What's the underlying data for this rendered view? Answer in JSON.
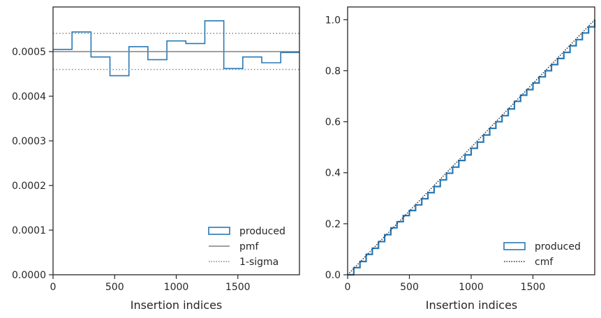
{
  "chart_data": [
    {
      "type": "step",
      "xlabel": "Insertion indices",
      "ylabel": "",
      "xlim": [
        0,
        2000
      ],
      "ylim": [
        0,
        0.0006
      ],
      "xticks": [
        0,
        500,
        1000,
        1500
      ],
      "xtick_labels": [
        "0",
        "500",
        "1000",
        "1500"
      ],
      "yticks": [
        0,
        0.0001,
        0.0002,
        0.0003,
        0.0004,
        0.0005
      ],
      "ytick_labels": [
        "0.0000",
        "0.0001",
        "0.0002",
        "0.0003",
        "0.0004",
        "0.0005"
      ],
      "grid": false,
      "legend_position": "lower-right",
      "series": [
        {
          "name": "produced",
          "style": "step",
          "color": "#2878b5",
          "bin_edges": [
            0,
            154,
            308,
            462,
            616,
            770,
            924,
            1078,
            1232,
            1386,
            1540,
            1694,
            1848,
            2000
          ],
          "values": [
            0.000505,
            0.000544,
            0.000488,
            0.000446,
            0.000511,
            0.000482,
            0.000524,
            0.000518,
            0.000569,
            0.000462,
            0.000488,
            0.000475,
            0.000498
          ]
        },
        {
          "name": "pmf",
          "style": "hline",
          "color": "#808080",
          "y": 0.0005
        },
        {
          "name": "1-sigma",
          "style": "hline-dotted",
          "color": "#808080",
          "y": [
            0.00046,
            0.000541
          ]
        }
      ],
      "legend": [
        {
          "label": "produced",
          "kind": "patch",
          "color": "#2878b5"
        },
        {
          "label": "pmf",
          "kind": "line",
          "color": "#808080"
        },
        {
          "label": "1-sigma",
          "kind": "dotted",
          "color": "#808080"
        }
      ]
    },
    {
      "type": "line",
      "xlabel": "Insertion indices",
      "ylabel": "",
      "xlim": [
        0,
        2000
      ],
      "ylim": [
        0,
        1.05
      ],
      "xticks": [
        0,
        500,
        1000,
        1500
      ],
      "xtick_labels": [
        "0",
        "500",
        "1000",
        "1500"
      ],
      "yticks": [
        0,
        0.2,
        0.4,
        0.6,
        0.8,
        1.0
      ],
      "ytick_labels": [
        "0.0",
        "0.2",
        "0.4",
        "0.6",
        "0.8",
        "1.0"
      ],
      "grid": false,
      "legend_position": "lower-right",
      "series": [
        {
          "name": "produced",
          "style": "step",
          "color": "#2878b5",
          "x": [
            0,
            50,
            100,
            150,
            200,
            250,
            300,
            350,
            400,
            450,
            500,
            550,
            600,
            650,
            700,
            750,
            800,
            850,
            900,
            950,
            1000,
            1050,
            1100,
            1150,
            1200,
            1250,
            1300,
            1350,
            1400,
            1450,
            1500,
            1550,
            1600,
            1650,
            1700,
            1750,
            1800,
            1850,
            1900,
            1950,
            2000
          ],
          "y": [
            0.0,
            0.028,
            0.052,
            0.08,
            0.104,
            0.13,
            0.157,
            0.184,
            0.208,
            0.232,
            0.252,
            0.274,
            0.298,
            0.322,
            0.346,
            0.372,
            0.398,
            0.422,
            0.448,
            0.47,
            0.496,
            0.52,
            0.548,
            0.574,
            0.6,
            0.624,
            0.65,
            0.68,
            0.704,
            0.726,
            0.752,
            0.776,
            0.8,
            0.824,
            0.848,
            0.872,
            0.898,
            0.922,
            0.948,
            0.972,
            1.0
          ]
        },
        {
          "name": "cmf",
          "style": "dotted",
          "color": "#262626",
          "x": [
            0,
            2000
          ],
          "y": [
            0.0,
            1.0
          ]
        }
      ],
      "legend": [
        {
          "label": "produced",
          "kind": "patch",
          "color": "#2878b5"
        },
        {
          "label": "cmf",
          "kind": "dotted",
          "color": "#262626"
        }
      ]
    }
  ]
}
